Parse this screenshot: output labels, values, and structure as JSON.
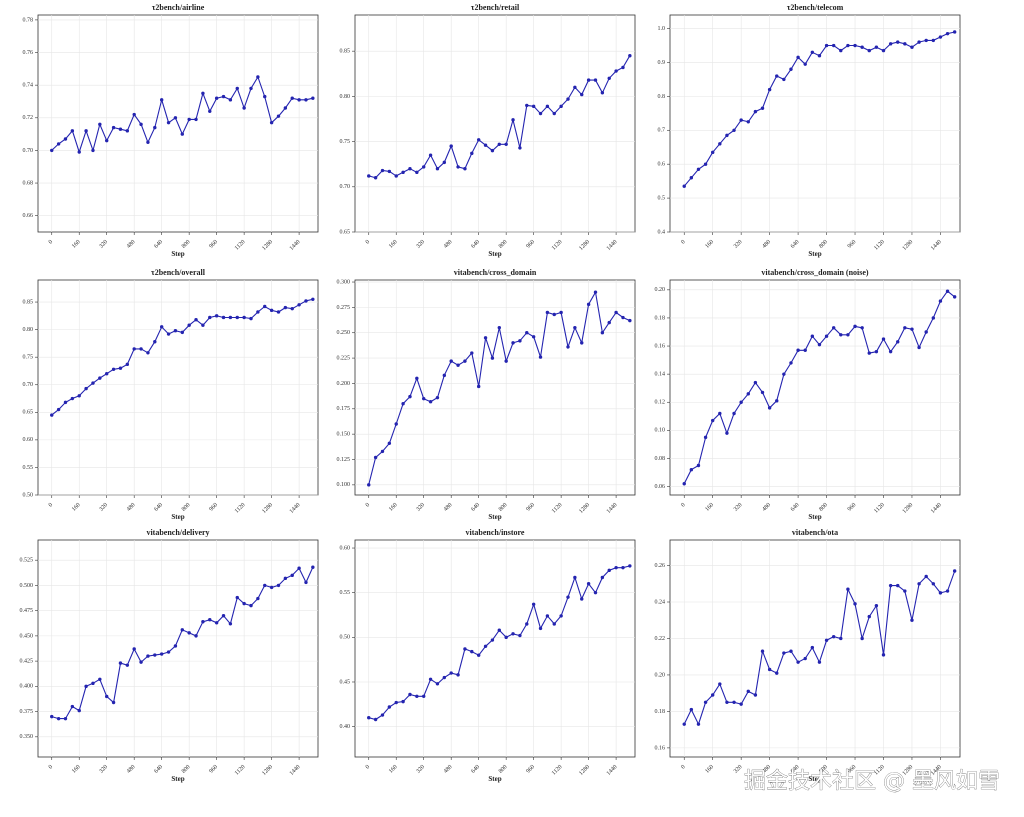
{
  "chart_data": [
    {
      "type": "line",
      "title": "τ2bench/airline",
      "xlabel": "Step",
      "color": "#2424b0",
      "grid": true,
      "x": [
        0,
        40,
        80,
        120,
        160,
        200,
        240,
        280,
        320,
        360,
        400,
        440,
        480,
        520,
        560,
        600,
        640,
        680,
        720,
        760,
        800,
        840,
        880,
        920,
        960,
        1000,
        1040,
        1080,
        1120,
        1160,
        1200,
        1240,
        1280,
        1320,
        1360,
        1400,
        1440,
        1480,
        1520
      ],
      "values": [
        0.7,
        0.704,
        0.707,
        0.712,
        0.699,
        0.712,
        0.7,
        0.716,
        0.706,
        0.714,
        0.713,
        0.712,
        0.722,
        0.716,
        0.705,
        0.714,
        0.731,
        0.717,
        0.72,
        0.71,
        0.719,
        0.719,
        0.735,
        0.724,
        0.732,
        0.733,
        0.731,
        0.738,
        0.726,
        0.738,
        0.745,
        0.733,
        0.717,
        0.721,
        0.726,
        0.732,
        0.731,
        0.731,
        0.732
      ],
      "xlim": [
        -80,
        1550
      ],
      "xticks": [
        0,
        160,
        320,
        480,
        640,
        800,
        960,
        1120,
        1280,
        1440
      ],
      "ylim": [
        0.65,
        0.783
      ],
      "yticks": [
        0.66,
        0.68,
        {
          "value": 0.7,
          "label": "0.70"
        },
        0.72,
        0.74,
        0.76,
        0.78
      ]
    },
    {
      "type": "line",
      "title": "τ2bench/retail",
      "xlabel": "Step",
      "color": "#2424b0",
      "grid": true,
      "x": [
        0,
        40,
        80,
        120,
        160,
        200,
        240,
        280,
        320,
        360,
        400,
        440,
        480,
        520,
        560,
        600,
        640,
        680,
        720,
        760,
        800,
        840,
        880,
        920,
        960,
        1000,
        1040,
        1080,
        1120,
        1160,
        1200,
        1240,
        1280,
        1320,
        1360,
        1400,
        1440,
        1480,
        1520
      ],
      "values": [
        0.712,
        0.71,
        0.718,
        0.717,
        0.712,
        0.716,
        0.72,
        0.716,
        0.722,
        0.735,
        0.72,
        0.727,
        0.745,
        0.722,
        0.72,
        0.737,
        0.752,
        0.746,
        0.74,
        0.747,
        0.747,
        0.774,
        0.743,
        0.79,
        0.789,
        0.781,
        0.789,
        0.781,
        0.789,
        0.797,
        0.81,
        0.802,
        0.818,
        0.818,
        0.804,
        0.82,
        0.828,
        0.832,
        0.845
      ],
      "xlim": [
        -80,
        1550
      ],
      "xticks": [
        0,
        160,
        320,
        480,
        640,
        800,
        960,
        1120,
        1280,
        1440
      ],
      "ylim": [
        0.65,
        0.89
      ],
      "yticks": [
        0.65,
        {
          "value": 0.7,
          "label": "0.70"
        },
        0.75,
        {
          "value": 0.8,
          "label": "0.80"
        },
        0.85
      ]
    },
    {
      "type": "line",
      "title": "τ2bench/telecom",
      "xlabel": "Step",
      "color": "#2424b0",
      "grid": true,
      "x": [
        0,
        40,
        80,
        120,
        160,
        200,
        240,
        280,
        320,
        360,
        400,
        440,
        480,
        520,
        560,
        600,
        640,
        680,
        720,
        760,
        800,
        840,
        880,
        920,
        960,
        1000,
        1040,
        1080,
        1120,
        1160,
        1200,
        1240,
        1280,
        1320,
        1360,
        1400,
        1440,
        1480,
        1520
      ],
      "values": [
        0.535,
        0.56,
        0.585,
        0.6,
        0.635,
        0.66,
        0.685,
        0.7,
        0.73,
        0.725,
        0.755,
        0.765,
        0.82,
        0.86,
        0.85,
        0.88,
        0.915,
        0.895,
        0.93,
        0.92,
        0.95,
        0.95,
        0.935,
        0.95,
        0.95,
        0.945,
        0.935,
        0.945,
        0.935,
        0.955,
        0.96,
        0.955,
        0.945,
        0.96,
        0.965,
        0.965,
        0.975,
        0.985,
        0.99
      ],
      "xlim": [
        -80,
        1550
      ],
      "xticks": [
        0,
        160,
        320,
        480,
        640,
        800,
        960,
        1120,
        1280,
        1440
      ],
      "ylim": [
        0.4,
        1.04
      ],
      "yticks": [
        0.4,
        0.5,
        0.6,
        0.7,
        0.8,
        0.9,
        {
          "value": 1,
          "label": "1.0"
        }
      ]
    },
    {
      "type": "line",
      "title": "τ2bench/overall",
      "xlabel": "Step",
      "color": "#2424b0",
      "grid": true,
      "x": [
        0,
        40,
        80,
        120,
        160,
        200,
        240,
        280,
        320,
        360,
        400,
        440,
        480,
        520,
        560,
        600,
        640,
        680,
        720,
        760,
        800,
        840,
        880,
        920,
        960,
        1000,
        1040,
        1080,
        1120,
        1160,
        1200,
        1240,
        1280,
        1320,
        1360,
        1400,
        1440,
        1480,
        1520
      ],
      "values": [
        0.645,
        0.655,
        0.668,
        0.675,
        0.68,
        0.693,
        0.703,
        0.712,
        0.72,
        0.728,
        0.73,
        0.737,
        0.765,
        0.765,
        0.758,
        0.778,
        0.805,
        0.792,
        0.798,
        0.795,
        0.808,
        0.818,
        0.808,
        0.822,
        0.825,
        0.822,
        0.822,
        0.822,
        0.822,
        0.82,
        0.832,
        0.842,
        0.835,
        0.832,
        0.84,
        0.838,
        0.845,
        0.852,
        0.855
      ],
      "xlim": [
        -80,
        1550
      ],
      "xticks": [
        0,
        160,
        320,
        480,
        640,
        800,
        960,
        1120,
        1280,
        1440
      ],
      "ylim": [
        0.5,
        0.89
      ],
      "yticks": [
        {
          "value": 0.5,
          "label": "0.50"
        },
        0.55,
        {
          "value": 0.6,
          "label": "0.60"
        },
        0.65,
        {
          "value": 0.7,
          "label": "0.70"
        },
        0.75,
        {
          "value": 0.8,
          "label": "0.80"
        },
        0.85
      ]
    },
    {
      "type": "line",
      "title": "vitabench/cross_domain",
      "xlabel": "Step",
      "color": "#2424b0",
      "grid": true,
      "x": [
        0,
        40,
        80,
        120,
        160,
        200,
        240,
        280,
        320,
        360,
        400,
        440,
        480,
        520,
        560,
        600,
        640,
        680,
        720,
        760,
        800,
        840,
        880,
        920,
        960,
        1000,
        1040,
        1080,
        1120,
        1160,
        1200,
        1240,
        1280,
        1320,
        1360,
        1400,
        1440,
        1480,
        1520
      ],
      "values": [
        0.1,
        0.127,
        0.133,
        0.141,
        0.16,
        0.18,
        0.187,
        0.205,
        0.185,
        0.182,
        0.186,
        0.208,
        0.222,
        0.218,
        0.222,
        0.23,
        0.197,
        0.245,
        0.225,
        0.255,
        0.222,
        0.24,
        0.242,
        0.25,
        0.246,
        0.226,
        0.27,
        0.268,
        0.27,
        0.236,
        0.255,
        0.24,
        0.278,
        0.29,
        0.25,
        0.26,
        0.27,
        0.265,
        0.262
      ],
      "xlim": [
        -80,
        1550
      ],
      "xticks": [
        0,
        160,
        320,
        480,
        640,
        800,
        960,
        1120,
        1280,
        1440
      ],
      "ylim": [
        0.09,
        0.302
      ],
      "yticks": [
        {
          "value": 0.1,
          "label": "0.100"
        },
        0.125,
        {
          "value": 0.15,
          "label": "0.150"
        },
        0.175,
        {
          "value": 0.2,
          "label": "0.200"
        },
        0.225,
        {
          "value": 0.25,
          "label": "0.250"
        },
        0.275,
        {
          "value": 0.3,
          "label": "0.300"
        }
      ]
    },
    {
      "type": "line",
      "title": "vitabench/cross_domain (noise)",
      "xlabel": "Step",
      "color": "#2424b0",
      "grid": true,
      "x": [
        0,
        40,
        80,
        120,
        160,
        200,
        240,
        280,
        320,
        360,
        400,
        440,
        480,
        520,
        560,
        600,
        640,
        680,
        720,
        760,
        800,
        840,
        880,
        920,
        960,
        1000,
        1040,
        1080,
        1120,
        1160,
        1200,
        1240,
        1280,
        1320,
        1360,
        1400,
        1440,
        1480,
        1520
      ],
      "values": [
        0.062,
        0.072,
        0.075,
        0.095,
        0.107,
        0.112,
        0.098,
        0.112,
        0.12,
        0.126,
        0.134,
        0.127,
        0.116,
        0.121,
        0.14,
        0.148,
        0.157,
        0.157,
        0.167,
        0.161,
        0.167,
        0.173,
        0.168,
        0.168,
        0.174,
        0.173,
        0.155,
        0.156,
        0.165,
        0.156,
        0.163,
        0.173,
        0.172,
        0.159,
        0.17,
        0.18,
        0.192,
        0.199,
        0.195
      ],
      "xlim": [
        -80,
        1550
      ],
      "xticks": [
        0,
        160,
        320,
        480,
        640,
        800,
        960,
        1120,
        1280,
        1440
      ],
      "ylim": [
        0.054,
        0.207
      ],
      "yticks": [
        0.06,
        0.08,
        {
          "value": 0.1,
          "label": "0.10"
        },
        0.12,
        0.14,
        0.16,
        0.18,
        {
          "value": 0.2,
          "label": "0.20"
        }
      ]
    },
    {
      "type": "line",
      "title": "vitabench/delivery",
      "xlabel": "Step",
      "color": "#2424b0",
      "grid": true,
      "x": [
        0,
        40,
        80,
        120,
        160,
        200,
        240,
        280,
        320,
        360,
        400,
        440,
        480,
        520,
        560,
        600,
        640,
        680,
        720,
        760,
        800,
        840,
        880,
        920,
        960,
        1000,
        1040,
        1080,
        1120,
        1160,
        1200,
        1240,
        1280,
        1320,
        1360,
        1400,
        1440,
        1480,
        1520
      ],
      "values": [
        0.37,
        0.368,
        0.368,
        0.38,
        0.376,
        0.4,
        0.403,
        0.407,
        0.39,
        0.384,
        0.423,
        0.421,
        0.437,
        0.424,
        0.43,
        0.431,
        0.432,
        0.434,
        0.44,
        0.456,
        0.453,
        0.45,
        0.464,
        0.466,
        0.463,
        0.47,
        0.462,
        0.488,
        0.482,
        0.48,
        0.487,
        0.5,
        0.498,
        0.5,
        0.507,
        0.51,
        0.517,
        0.503,
        0.518
      ],
      "xlim": [
        -80,
        1550
      ],
      "xticks": [
        0,
        160,
        320,
        480,
        640,
        800,
        960,
        1120,
        1280,
        1440
      ],
      "ylim": [
        0.33,
        0.545
      ],
      "yticks": [
        {
          "value": 0.35,
          "label": "0.350"
        },
        0.375,
        {
          "value": 0.4,
          "label": "0.400"
        },
        0.425,
        {
          "value": 0.45,
          "label": "0.450"
        },
        0.475,
        {
          "value": 0.5,
          "label": "0.500"
        },
        0.525
      ]
    },
    {
      "type": "line",
      "title": "vitabench/instore",
      "xlabel": "Step",
      "color": "#2424b0",
      "grid": true,
      "x": [
        0,
        40,
        80,
        120,
        160,
        200,
        240,
        280,
        320,
        360,
        400,
        440,
        480,
        520,
        560,
        600,
        640,
        680,
        720,
        760,
        800,
        840,
        880,
        920,
        960,
        1000,
        1040,
        1080,
        1120,
        1160,
        1200,
        1240,
        1280,
        1320,
        1360,
        1400,
        1440,
        1480,
        1520
      ],
      "values": [
        0.41,
        0.408,
        0.413,
        0.422,
        0.427,
        0.428,
        0.436,
        0.434,
        0.434,
        0.453,
        0.448,
        0.455,
        0.46,
        0.458,
        0.487,
        0.484,
        0.48,
        0.49,
        0.497,
        0.508,
        0.5,
        0.504,
        0.502,
        0.515,
        0.537,
        0.51,
        0.524,
        0.515,
        0.524,
        0.545,
        0.567,
        0.543,
        0.56,
        0.55,
        0.567,
        0.575,
        0.578,
        0.578,
        0.58
      ],
      "xlim": [
        -80,
        1550
      ],
      "xticks": [
        0,
        160,
        320,
        480,
        640,
        800,
        960,
        1120,
        1280,
        1440
      ],
      "ylim": [
        0.366,
        0.609
      ],
      "yticks": [
        {
          "value": 0.4,
          "label": "0.40"
        },
        0.45,
        {
          "value": 0.5,
          "label": "0.50"
        },
        0.55,
        {
          "value": 0.6,
          "label": "0.60"
        }
      ]
    },
    {
      "type": "line",
      "title": "vitabench/ota",
      "xlabel": "Step",
      "color": "#2424b0",
      "grid": true,
      "x": [
        0,
        40,
        80,
        120,
        160,
        200,
        240,
        280,
        320,
        360,
        400,
        440,
        480,
        520,
        560,
        600,
        640,
        680,
        720,
        760,
        800,
        840,
        880,
        920,
        960,
        1000,
        1040,
        1080,
        1120,
        1160,
        1200,
        1240,
        1280,
        1320,
        1360,
        1400,
        1440,
        1480,
        1520
      ],
      "values": [
        0.173,
        0.181,
        0.173,
        0.185,
        0.189,
        0.195,
        0.185,
        0.185,
        0.184,
        0.191,
        0.189,
        0.213,
        0.203,
        0.201,
        0.212,
        0.213,
        0.207,
        0.209,
        0.215,
        0.207,
        0.219,
        0.221,
        0.22,
        0.247,
        0.239,
        0.22,
        0.232,
        0.238,
        0.211,
        0.249,
        0.249,
        0.246,
        0.23,
        0.25,
        0.254,
        0.25,
        0.245,
        0.246,
        0.257
      ],
      "xlim": [
        -80,
        1550
      ],
      "xticks": [
        0,
        160,
        320,
        480,
        640,
        800,
        960,
        1120,
        1280,
        1440
      ],
      "ylim": [
        0.155,
        0.274
      ],
      "yticks": [
        0.16,
        0.18,
        {
          "value": 0.2,
          "label": "0.20"
        },
        0.22,
        0.24,
        0.26
      ]
    }
  ],
  "watermark": "掘金技术社区 @ 墨风如雪"
}
